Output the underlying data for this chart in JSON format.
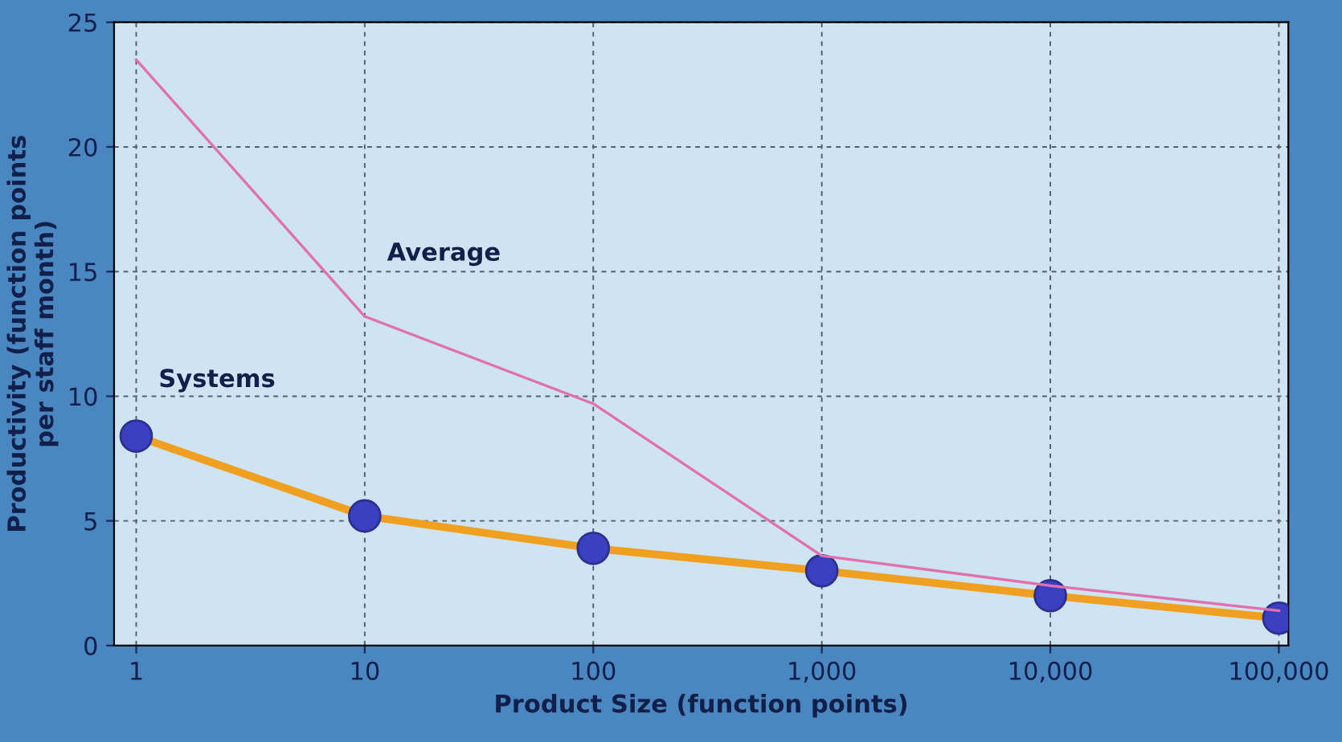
{
  "chart_data": {
    "type": "line",
    "xlabel": "Product Size (function points)",
    "ylabel": "Productivity (function points\nper staff month)",
    "x": [
      1,
      10,
      100,
      1000,
      10000,
      100000
    ],
    "series": [
      {
        "name": "Average",
        "color": "#e070b0",
        "values": [
          23.5,
          13.2,
          9.7,
          3.6,
          2.4,
          1.4
        ],
        "marker": "none"
      },
      {
        "name": "Systems",
        "color": "#f0a020",
        "values": [
          8.4,
          5.2,
          3.9,
          3.0,
          2.0,
          1.1
        ],
        "marker": "circle"
      }
    ],
    "log": "x",
    "xlim": [
      0.8,
      110000
    ],
    "ylim": [
      0,
      25
    ],
    "xticks": [
      {
        "value": 1,
        "label": "1"
      },
      {
        "value": 10,
        "label": "10"
      },
      {
        "value": 100,
        "label": "100"
      },
      {
        "value": 1000,
        "label": "1,000"
      },
      {
        "value": 10000,
        "label": "10,000"
      },
      {
        "value": 100000,
        "label": "100,000"
      }
    ],
    "yticks": [
      0,
      5,
      10,
      15,
      20,
      25
    ],
    "grid": true,
    "line_style": "solid"
  }
}
